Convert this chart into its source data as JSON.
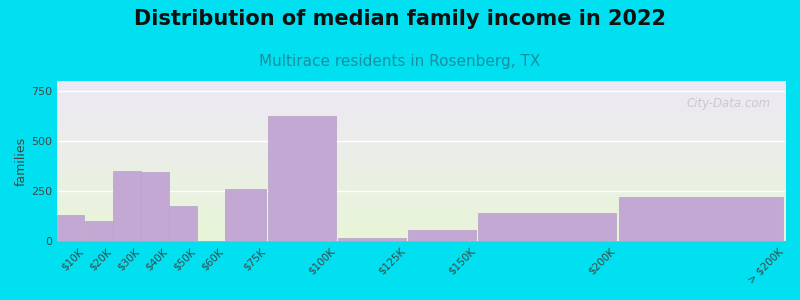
{
  "title": "Distribution of median family income in 2022",
  "subtitle": "Multirace residents in Rosenberg, TX",
  "ylabel": "families",
  "bar_color": "#c4a8d4",
  "bar_edge_color": "#b8a0c8",
  "background_outer": "#00e0f0",
  "background_plot_top": "#e8f5d8",
  "background_plot_bottom": "#ede8f5",
  "yticks": [
    0,
    250,
    500,
    750
  ],
  "ylim": [
    0,
    800
  ],
  "title_fontsize": 15,
  "subtitle_fontsize": 11,
  "subtitle_color": "#1a8fa0",
  "watermark": "City-Data.com",
  "bin_edges": [
    0,
    10,
    20,
    30,
    40,
    50,
    60,
    75,
    100,
    125,
    150,
    200,
    260
  ],
  "bin_labels": [
    "$10K",
    "$20K",
    "$30K",
    "$40K",
    "$50K",
    "$60K",
    "$75K",
    "$100K",
    "$125K",
    "$150K",
    "$200K",
    "> $200K"
  ],
  "values": [
    130,
    100,
    350,
    345,
    175,
    0,
    260,
    625,
    15,
    55,
    140,
    220
  ]
}
